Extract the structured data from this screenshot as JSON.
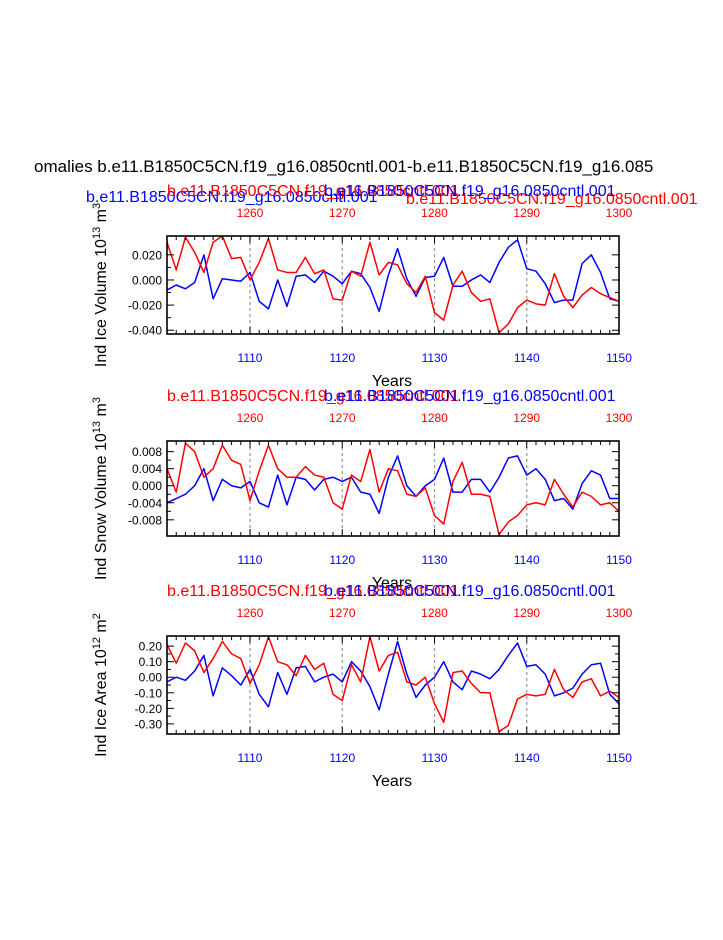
{
  "page": {
    "main_title": "omalies b.e11.B1850C5CN.f19_g16.0850cntl.001-b.e11.B1850C5CN.f19_g16.085",
    "blue_title": "b.e11.B1850C5CN.f19_g16.0850cntl.001",
    "red_title": "b.e11.B1850C5CN.f19_g16.0850cntl.001",
    "colors": {
      "blue": "#0000ff",
      "red": "#ff0000",
      "text": "#000000",
      "grid": "#999999"
    }
  },
  "chart_data": [
    {
      "type": "line",
      "ylabel_base": "Ind Ice Volume 10",
      "ylabel_exp": "13",
      "ylabel_unit": " m",
      "ylabel_unit_exp": "3",
      "xlabel": "Years",
      "title_red": "b.e11.B1850C5CN.f19_g16.0850cntl.001",
      "title_blue": "b.e11.B1850C5CN.f19_g16.0850cntl.001",
      "xlim_bottom": [
        1101,
        1150
      ],
      "xlim_top": [
        1251,
        1300
      ],
      "bottom_ticks": [
        "1110",
        "1120",
        "1130",
        "1140",
        "1150"
      ],
      "top_ticks": [
        "1260",
        "1270",
        "1280",
        "1290",
        "1300"
      ],
      "ylim": [
        -0.043,
        0.035
      ],
      "yticks": [
        0.02,
        0.0,
        -0.02,
        -0.04
      ],
      "ytick_labels": [
        "0.020",
        "0.000",
        "-0.020",
        "-0.040"
      ],
      "series": [
        {
          "color": "blue",
          "x": [
            1101,
            1102,
            1103,
            1104,
            1105,
            1106,
            1107,
            1108,
            1109,
            1110,
            1111,
            1112,
            1113,
            1114,
            1115,
            1116,
            1117,
            1118,
            1119,
            1120,
            1121,
            1122,
            1123,
            1124,
            1125,
            1126,
            1127,
            1128,
            1129,
            1130,
            1131,
            1132,
            1133,
            1134,
            1135,
            1136,
            1137,
            1138,
            1139,
            1140,
            1141,
            1142,
            1143,
            1144,
            1145,
            1146,
            1147,
            1148,
            1149,
            1150
          ],
          "values": [
            -0.008,
            -0.004,
            -0.007,
            -0.002,
            0.02,
            -0.015,
            0.001,
            0.0,
            -0.001,
            0.006,
            -0.017,
            -0.023,
            0.0,
            -0.021,
            0.003,
            0.004,
            -0.002,
            0.007,
            0.003,
            -0.003,
            0.007,
            0.005,
            -0.006,
            -0.025,
            0.004,
            0.025,
            0.001,
            -0.013,
            0.002,
            0.003,
            0.018,
            -0.005,
            -0.005,
            0.0,
            0.004,
            -0.002,
            0.014,
            0.026,
            0.032,
            0.009,
            0.007,
            -0.003,
            -0.018,
            -0.016,
            -0.016,
            0.013,
            0.02,
            0.006,
            -0.015,
            -0.017
          ]
        },
        {
          "color": "red",
          "x": [
            1101,
            1102,
            1103,
            1104,
            1105,
            1106,
            1107,
            1108,
            1109,
            1110,
            1111,
            1112,
            1113,
            1114,
            1115,
            1116,
            1117,
            1118,
            1119,
            1120,
            1121,
            1122,
            1123,
            1124,
            1125,
            1126,
            1127,
            1128,
            1129,
            1130,
            1131,
            1132,
            1133,
            1134,
            1135,
            1136,
            1137,
            1138,
            1139,
            1140,
            1141,
            1142,
            1143,
            1144,
            1145,
            1146,
            1147,
            1148,
            1149,
            1150
          ],
          "values": [
            0.03,
            0.008,
            0.034,
            0.022,
            0.006,
            0.03,
            0.035,
            0.017,
            0.018,
            0.0,
            0.014,
            0.033,
            0.008,
            0.006,
            0.006,
            0.018,
            0.005,
            0.008,
            -0.015,
            -0.016,
            0.007,
            0.003,
            0.03,
            0.004,
            0.014,
            0.012,
            -0.003,
            -0.01,
            0.003,
            -0.026,
            -0.032,
            -0.004,
            0.007,
            -0.01,
            -0.017,
            -0.015,
            -0.042,
            -0.035,
            -0.022,
            -0.016,
            -0.019,
            -0.02,
            0.005,
            -0.013,
            -0.022,
            -0.012,
            -0.006,
            -0.011,
            -0.014,
            -0.017
          ]
        }
      ]
    },
    {
      "type": "line",
      "ylabel_base": "Ind Snow Volume 10",
      "ylabel_exp": "13",
      "ylabel_unit": " m",
      "ylabel_unit_exp": "3",
      "xlabel": "Years",
      "title_red": "b.e11.B1850C5CN.f19_g16.0850cntl.001",
      "title_blue": "b.e11.B1850C5CN.f19_g16.0850cntl.001",
      "xlim_bottom": [
        1101,
        1150
      ],
      "xlim_top": [
        1251,
        1300
      ],
      "bottom_ticks": [
        "1110",
        "1120",
        "1130",
        "1140",
        "1150"
      ],
      "top_ticks": [
        "1260",
        "1270",
        "1280",
        "1290",
        "1300"
      ],
      "ylim": [
        -0.0118,
        0.0105
      ],
      "yticks": [
        0.008,
        0.004,
        0.0,
        -0.004,
        -0.008
      ],
      "ytick_labels": [
        "0.008",
        "0.004",
        "0.000",
        "-0.004",
        "-0.008"
      ],
      "series": [
        {
          "color": "blue",
          "x": [
            1101,
            1102,
            1103,
            1104,
            1105,
            1106,
            1107,
            1108,
            1109,
            1110,
            1111,
            1112,
            1113,
            1114,
            1115,
            1116,
            1117,
            1118,
            1119,
            1120,
            1121,
            1122,
            1123,
            1124,
            1125,
            1126,
            1127,
            1128,
            1129,
            1130,
            1131,
            1132,
            1133,
            1134,
            1135,
            1136,
            1137,
            1138,
            1139,
            1140,
            1141,
            1142,
            1143,
            1144,
            1145,
            1146,
            1147,
            1148,
            1149,
            1150
          ],
          "values": [
            -0.004,
            -0.003,
            -0.002,
            0.0,
            0.004,
            -0.0035,
            0.0015,
            0.0,
            -0.0005,
            0.001,
            -0.004,
            -0.005,
            0.0025,
            -0.0045,
            0.002,
            0.0015,
            -0.001,
            0.0015,
            0.002,
            0.001,
            0.002,
            -0.0015,
            -0.002,
            -0.0065,
            0.002,
            0.007,
            0.0,
            -0.0025,
            0.0,
            0.0015,
            0.0065,
            -0.0015,
            -0.0015,
            0.0015,
            0.0015,
            -0.0015,
            0.002,
            0.0065,
            0.007,
            0.0025,
            0.004,
            0.0015,
            -0.0035,
            -0.003,
            -0.0055,
            0.0005,
            0.0035,
            0.0025,
            -0.003,
            -0.003
          ]
        },
        {
          "color": "red",
          "x": [
            1101,
            1102,
            1103,
            1104,
            1105,
            1106,
            1107,
            1108,
            1109,
            1110,
            1111,
            1112,
            1113,
            1114,
            1115,
            1116,
            1117,
            1118,
            1119,
            1120,
            1121,
            1122,
            1123,
            1124,
            1125,
            1126,
            1127,
            1128,
            1129,
            1130,
            1131,
            1132,
            1133,
            1134,
            1135,
            1136,
            1137,
            1138,
            1139,
            1140,
            1141,
            1142,
            1143,
            1144,
            1145,
            1146,
            1147,
            1148,
            1149,
            1150
          ],
          "values": [
            0.004,
            -0.0015,
            0.01,
            0.008,
            0.002,
            0.004,
            0.0095,
            0.006,
            0.005,
            -0.0035,
            0.0035,
            0.0095,
            0.004,
            0.002,
            0.002,
            0.0045,
            0.0025,
            0.002,
            -0.004,
            -0.0055,
            0.0025,
            0.001,
            0.0085,
            -0.0015,
            0.004,
            0.0035,
            -0.002,
            -0.0025,
            -0.0005,
            -0.007,
            -0.009,
            0.001,
            0.0055,
            -0.002,
            -0.002,
            -0.0025,
            -0.0115,
            -0.0085,
            -0.007,
            -0.0045,
            -0.004,
            -0.0045,
            0.0015,
            -0.002,
            -0.005,
            -0.0015,
            -0.0025,
            -0.0045,
            -0.004,
            -0.006
          ]
        }
      ]
    },
    {
      "type": "line",
      "ylabel_base": "Ind Ice Area 10",
      "ylabel_exp": "12",
      "ylabel_unit": " m",
      "ylabel_unit_exp": "2",
      "xlabel": "Years",
      "title_red": "b.e11.B1850C5CN.f19_g16.0850cntl.001",
      "title_blue": "b.e11.B1850C5CN.f19_g16.0850cntl.001",
      "xlim_bottom": [
        1101,
        1150
      ],
      "xlim_top": [
        1251,
        1300
      ],
      "bottom_ticks": [
        "1110",
        "1120",
        "1130",
        "1140",
        "1150"
      ],
      "top_ticks": [
        "1260",
        "1270",
        "1280",
        "1290",
        "1300"
      ],
      "ylim": [
        -0.365,
        0.265
      ],
      "yticks": [
        0.2,
        0.1,
        0.0,
        -0.1,
        -0.2,
        -0.3
      ],
      "ytick_labels": [
        "0.20",
        "0.10",
        "0.00",
        "-0.10",
        "-0.20",
        "-0.30"
      ],
      "series": [
        {
          "color": "blue",
          "x": [
            1101,
            1102,
            1103,
            1104,
            1105,
            1106,
            1107,
            1108,
            1109,
            1110,
            1111,
            1112,
            1113,
            1114,
            1115,
            1116,
            1117,
            1118,
            1119,
            1120,
            1121,
            1122,
            1123,
            1124,
            1125,
            1126,
            1127,
            1128,
            1129,
            1130,
            1131,
            1132,
            1133,
            1134,
            1135,
            1136,
            1137,
            1138,
            1139,
            1140,
            1141,
            1142,
            1143,
            1144,
            1145,
            1146,
            1147,
            1148,
            1149,
            1150
          ],
          "values": [
            -0.03,
            0.0,
            -0.02,
            0.04,
            0.14,
            -0.12,
            0.06,
            0.01,
            -0.05,
            0.05,
            -0.11,
            -0.19,
            0.03,
            -0.11,
            0.06,
            0.07,
            -0.03,
            0.0,
            0.02,
            -0.03,
            0.1,
            0.04,
            -0.06,
            -0.21,
            0.02,
            0.23,
            0.02,
            -0.13,
            -0.05,
            0.0,
            0.1,
            -0.03,
            -0.08,
            0.04,
            0.02,
            -0.01,
            0.05,
            0.14,
            0.22,
            0.07,
            0.08,
            0.02,
            -0.12,
            -0.1,
            -0.07,
            0.02,
            0.08,
            0.09,
            -0.11,
            -0.17
          ]
        },
        {
          "color": "red",
          "x": [
            1101,
            1102,
            1103,
            1104,
            1105,
            1106,
            1107,
            1108,
            1109,
            1110,
            1111,
            1112,
            1113,
            1114,
            1115,
            1116,
            1117,
            1118,
            1119,
            1120,
            1121,
            1122,
            1123,
            1124,
            1125,
            1126,
            1127,
            1128,
            1129,
            1130,
            1131,
            1132,
            1133,
            1134,
            1135,
            1136,
            1137,
            1138,
            1139,
            1140,
            1141,
            1142,
            1143,
            1144,
            1145,
            1146,
            1147,
            1148,
            1149,
            1150
          ],
          "values": [
            0.21,
            0.09,
            0.22,
            0.17,
            0.03,
            0.12,
            0.23,
            0.15,
            0.12,
            -0.04,
            0.08,
            0.26,
            0.1,
            0.08,
            0.01,
            0.14,
            0.05,
            0.09,
            -0.11,
            -0.15,
            0.08,
            -0.03,
            0.26,
            0.04,
            0.14,
            0.16,
            -0.03,
            -0.05,
            0.0,
            -0.17,
            -0.29,
            0.03,
            0.04,
            -0.04,
            -0.1,
            -0.1,
            -0.35,
            -0.31,
            -0.14,
            -0.11,
            -0.12,
            -0.11,
            0.05,
            -0.08,
            -0.13,
            -0.03,
            -0.01,
            -0.12,
            -0.09,
            -0.13
          ]
        }
      ]
    }
  ]
}
